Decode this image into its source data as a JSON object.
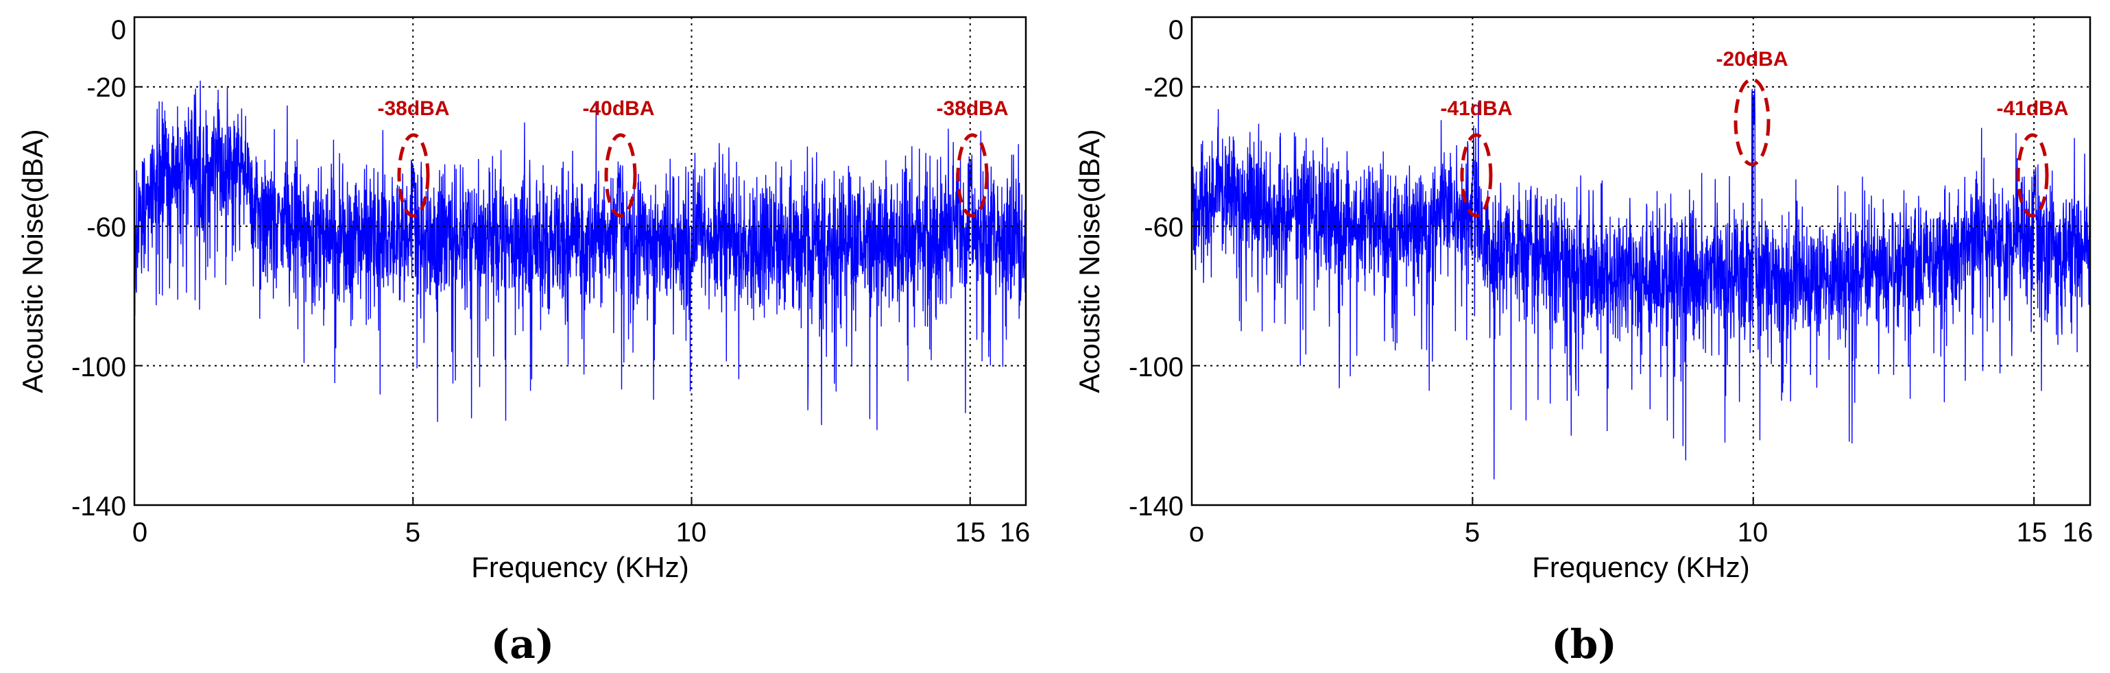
{
  "chart_data": [
    {
      "type": "line",
      "panel_label": "(a)",
      "xlabel": "Frequency (KHz)",
      "ylabel": "Acoustic Noise(dBA)",
      "xlim": [
        0,
        16
      ],
      "ylim": [
        -140,
        0
      ],
      "x_ticks": [
        0,
        5,
        10,
        15,
        16
      ],
      "x_tick_labels": [
        "0",
        "5",
        "10",
        "15",
        "16"
      ],
      "y_ticks": [
        0,
        -20,
        -60,
        -100,
        -140
      ],
      "y_tick_labels": [
        "0",
        "-20",
        "-60",
        "-100",
        "-140"
      ],
      "grid": true,
      "series_color": "#0000ff",
      "spectrum_profile": {
        "x": [
          0,
          0.5,
          1,
          1.5,
          2,
          2.2,
          2.5,
          3,
          4,
          5,
          6,
          7,
          8,
          9,
          10,
          11,
          12,
          13,
          14,
          15,
          16
        ],
        "y": [
          -58,
          -45,
          -42,
          -42,
          -45,
          -55,
          -60,
          -63,
          -63,
          -63,
          -64,
          -64,
          -64,
          -64,
          -64,
          -65,
          -64,
          -65,
          -64,
          -63,
          -64
        ]
      },
      "annotations": [
        {
          "text": "-38dBA",
          "x": 5.0,
          "y": -38
        },
        {
          "text": "-40dBA",
          "x": 8.7,
          "y": -40
        },
        {
          "text": "-38dBA",
          "x": 15.0,
          "y": -38
        }
      ]
    },
    {
      "type": "line",
      "panel_label": "(b)",
      "xlabel": "Frequency (KHz)",
      "ylabel": "Acoustic Noise(dBA)",
      "xlim": [
        0,
        16
      ],
      "ylim": [
        -140,
        0
      ],
      "x_ticks": [
        0,
        5,
        10,
        15,
        16
      ],
      "x_tick_labels": [
        "o",
        "5",
        "10",
        "15",
        "16"
      ],
      "y_ticks": [
        0,
        -20,
        -60,
        -100,
        -140
      ],
      "y_tick_labels": [
        "0",
        "-20",
        "-60",
        "-100",
        "-140"
      ],
      "grid": true,
      "series_color": "#0000ff",
      "spectrum_profile": {
        "x": [
          0,
          0.5,
          1,
          1.5,
          2,
          2.5,
          3,
          3.5,
          4,
          4.5,
          5,
          5.3,
          6,
          7,
          8,
          9,
          10,
          11,
          12,
          13,
          14,
          15,
          15.5,
          16
        ],
        "y": [
          -55,
          -50,
          -52,
          -56,
          -55,
          -58,
          -60,
          -62,
          -60,
          -57,
          -55,
          -68,
          -68,
          -72,
          -75,
          -76,
          -75,
          -75,
          -74,
          -70,
          -65,
          -63,
          -68,
          -68
        ]
      },
      "annotations": [
        {
          "text": "-41dBA",
          "x": 5.0,
          "y": -41
        },
        {
          "text": "-20dBA",
          "x": 10.0,
          "y": -20
        },
        {
          "text": "-41dBA",
          "x": 15.0,
          "y": -41
        }
      ]
    }
  ]
}
